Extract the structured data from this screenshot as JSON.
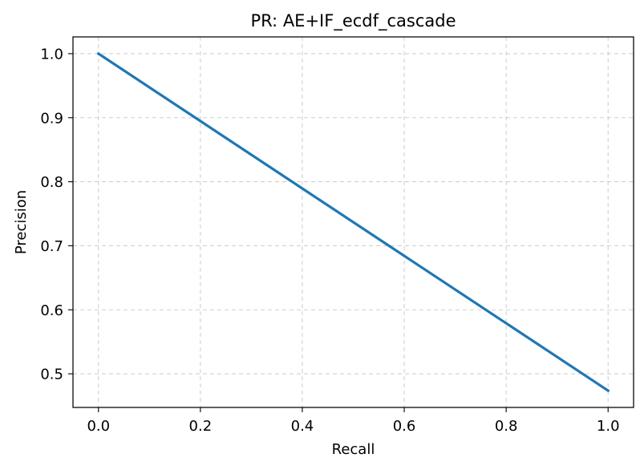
{
  "chart_data": {
    "type": "line",
    "title": "PR: AE+IF_ecdf_cascade",
    "xlabel": "Recall",
    "ylabel": "Precision",
    "xlim": [
      -0.05,
      1.05
    ],
    "ylim": [
      0.4475,
      1.0262
    ],
    "xticks": [
      0.0,
      0.2,
      0.4,
      0.6,
      0.8,
      1.0
    ],
    "xtick_labels": [
      "0.0",
      "0.2",
      "0.4",
      "0.6",
      "0.8",
      "1.0"
    ],
    "yticks": [
      0.5,
      0.6,
      0.7,
      0.8,
      0.9,
      1.0
    ],
    "ytick_labels": [
      "0.5",
      "0.6",
      "0.7",
      "0.8",
      "0.9",
      "1.0"
    ],
    "grid": true,
    "series": [
      {
        "x": [
          0.0,
          1.0
        ],
        "y": [
          1.0,
          0.4737
        ],
        "color": "#1f77b4"
      }
    ]
  }
}
